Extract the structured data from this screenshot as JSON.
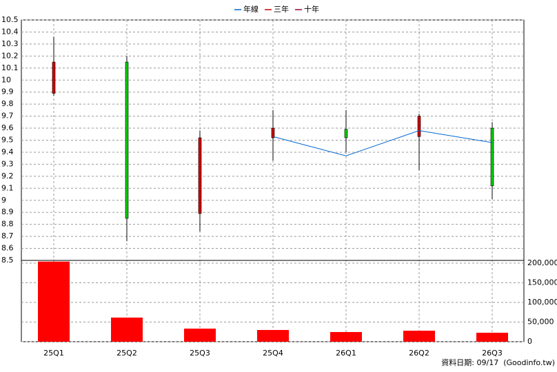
{
  "chart_data": {
    "type": "candlestick",
    "categories": [
      "25Q1",
      "25Q2",
      "25Q3",
      "25Q4",
      "26Q1",
      "26Q2",
      "26Q3"
    ],
    "open": [
      9.89,
      10.15,
      8.89,
      9.52,
      9.59,
      9.53,
      9.6
    ],
    "high": [
      10.36,
      10.2,
      9.58,
      9.75,
      9.75,
      9.72,
      9.65
    ],
    "low": [
      9.87,
      8.66,
      8.74,
      9.33,
      9.4,
      9.25,
      9.01
    ],
    "close": [
      10.15,
      8.85,
      9.52,
      9.6,
      9.52,
      9.7,
      9.12
    ],
    "up_color": "#cc0000",
    "down_color": "#00cc00",
    "series": [
      {
        "name": "年線",
        "color": "#0066cc",
        "values": [
          null,
          null,
          null,
          9.53,
          9.37,
          9.58,
          9.48
        ]
      },
      {
        "name": "三年",
        "color": "#cc0000",
        "values": [
          null,
          null,
          null,
          null,
          null,
          null,
          null
        ]
      },
      {
        "name": "十年",
        "color": "#990033",
        "values": [
          null,
          null,
          null,
          null,
          null,
          null,
          null
        ]
      }
    ],
    "ylim": [
      8.5,
      10.5
    ],
    "yticks": [
      8.5,
      8.6,
      8.7,
      8.8,
      8.9,
      9,
      9.1,
      9.2,
      9.3,
      9.4,
      9.5,
      9.6,
      9.7,
      9.8,
      9.9,
      10,
      10.1,
      10.2,
      10.3,
      10.4,
      10.5
    ],
    "volume": {
      "axis": "y2",
      "color": "#ff0000",
      "values": [
        204000,
        61400,
        33300,
        29800,
        24600,
        28000,
        22800
      ]
    },
    "y2lim": [
      0,
      207000
    ],
    "y2ticks": [
      0,
      {
        "value": 50000,
        "label": "50,000"
      },
      {
        "value": 100000,
        "label": "100,000"
      },
      {
        "value": 150000,
        "label": "150,000"
      },
      {
        "value": 200000,
        "label": "200,000"
      }
    ],
    "grid": true,
    "source": "資料日期: 09/17  (Goodinfo.tw)"
  }
}
